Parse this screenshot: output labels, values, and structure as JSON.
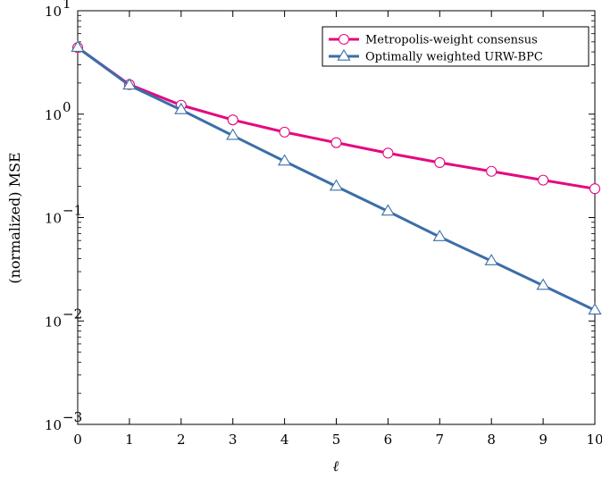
{
  "chart_data": {
    "type": "line",
    "title": "",
    "xlabel": "ℓ",
    "ylabel": "(normalized) MSE",
    "x": [
      0,
      1,
      2,
      3,
      4,
      5,
      6,
      7,
      8,
      9,
      10
    ],
    "xlim": [
      0,
      10
    ],
    "ylim": [
      0.001,
      10
    ],
    "yscale": "log",
    "x_ticks": [
      "0",
      "1",
      "2",
      "3",
      "4",
      "5",
      "6",
      "7",
      "8",
      "9",
      "10"
    ],
    "y_ticks": [
      {
        "base": "10",
        "exp": "−3"
      },
      {
        "base": "10",
        "exp": "−2"
      },
      {
        "base": "10",
        "exp": "−1"
      },
      {
        "base": "10",
        "exp": "0"
      },
      {
        "base": "10",
        "exp": "1"
      }
    ],
    "grid": false,
    "legend_position": "top-right",
    "series": [
      {
        "name": "Metropolis-weight consensus",
        "color": "#e5097f",
        "marker": "circle",
        "values": [
          4.4,
          1.93,
          1.22,
          0.88,
          0.67,
          0.53,
          0.42,
          0.34,
          0.28,
          0.23,
          0.19
        ]
      },
      {
        "name": "Optimally weighted URW-BPC",
        "color": "#3c6ea8",
        "marker": "triangle",
        "values": [
          4.4,
          1.9,
          1.1,
          0.62,
          0.35,
          0.2,
          0.115,
          0.065,
          0.038,
          0.022,
          0.0127
        ]
      }
    ]
  }
}
